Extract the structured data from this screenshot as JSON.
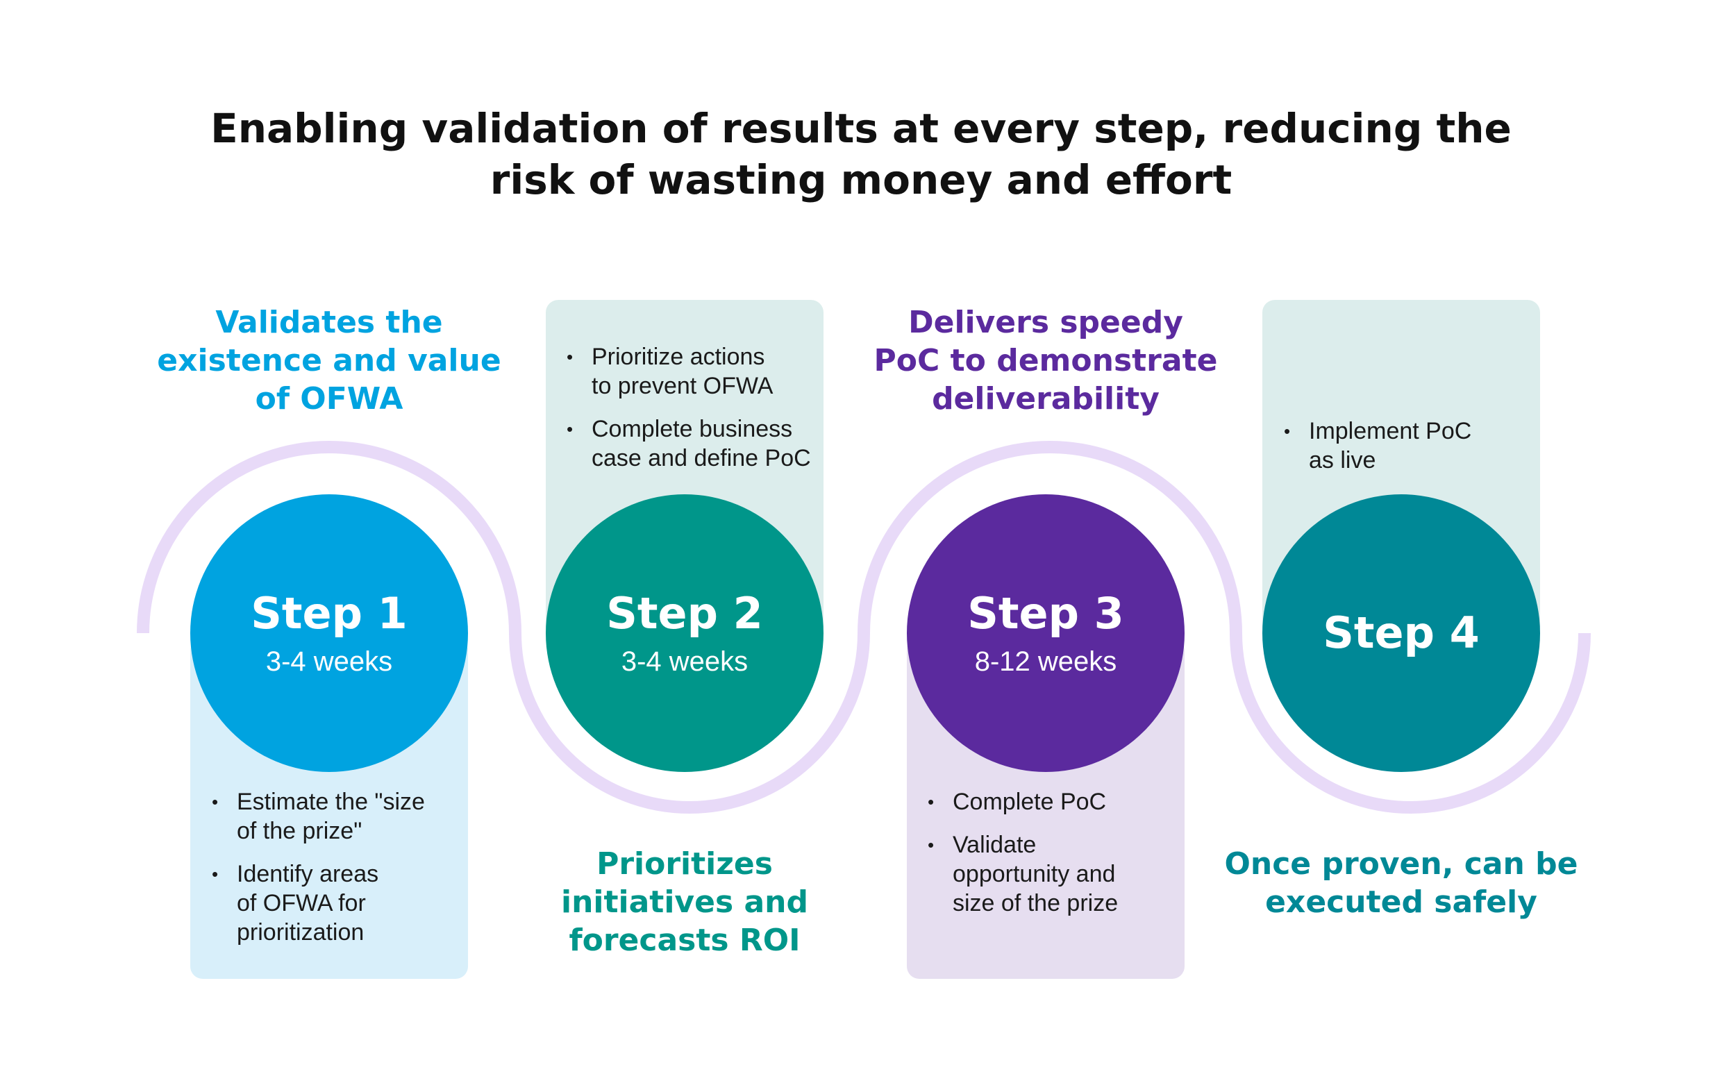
{
  "title": "Enabling validation of results at every step, reducing the risk of wasting money and effort",
  "colors": {
    "step1": "#00A3E0",
    "step2": "#00968A",
    "step3": "#5B2A9E",
    "step4": "#008896",
    "wave": "#E8DAF8",
    "panel_blue": "#D8EFFA",
    "panel_teal": "#DCEDEC",
    "panel_purple": "#E6DEF0"
  },
  "steps": [
    {
      "title": "Step 1",
      "duration": "3-4 weeks",
      "tagline": "Validates the existence and value of OFWA",
      "bullets": [
        "Estimate the \"size\nof the prize\"",
        "Identify areas\nof OFWA for\nprioritization"
      ]
    },
    {
      "title": "Step 2",
      "duration": "3-4 weeks",
      "tagline": "Prioritizes initiatives and forecasts ROI",
      "bullets": [
        "Prioritize actions\nto prevent OFWA",
        "Complete business\ncase and define PoC"
      ]
    },
    {
      "title": "Step 3",
      "duration": "8-12 weeks",
      "tagline": "Delivers speedy PoC to demonstrate deliverability",
      "bullets": [
        "Complete PoC",
        "Validate\nopportunity and\nsize of the prize"
      ]
    },
    {
      "title": "Step 4",
      "duration": "",
      "tagline": "Once proven, can be executed safely",
      "bullets": [
        "Implement PoC\nas live"
      ]
    }
  ]
}
